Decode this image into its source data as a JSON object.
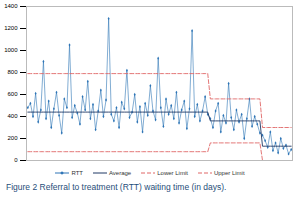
{
  "chart_data": {
    "type": "line",
    "title": "Figure 2 Referral to treatment (RTT) waiting time (in days).",
    "categories": [
      null,
      null,
      null,
      null,
      null,
      null,
      null,
      null,
      null,
      null,
      null,
      null,
      null,
      null,
      null,
      null,
      null,
      null,
      null,
      null,
      null,
      null,
      null,
      null,
      null,
      null,
      null,
      null,
      null,
      null,
      null,
      null,
      null,
      null,
      null,
      null,
      null,
      null,
      null,
      null,
      null,
      null,
      null,
      null,
      null,
      null,
      null,
      null,
      null,
      null,
      null,
      null,
      null,
      null,
      null,
      null,
      null,
      null,
      null,
      null,
      null,
      null,
      null,
      null,
      null,
      null,
      null,
      null,
      null,
      null,
      null,
      null,
      null,
      null,
      null,
      null,
      null,
      null,
      null,
      null,
      null,
      null,
      null,
      null,
      null,
      null,
      null,
      null,
      null,
      null,
      null,
      null,
      null,
      null,
      null,
      null,
      null,
      null,
      null,
      null,
      null,
      null
    ],
    "series": [
      {
        "name": "RTT",
        "color": "#2e75b6",
        "marker": "diamond",
        "line_style": "solid",
        "values": [
          480,
          520,
          400,
          610,
          350,
          460,
          900,
          380,
          540,
          300,
          470,
          620,
          410,
          250,
          560,
          480,
          1050,
          390,
          500,
          430,
          330,
          580,
          460,
          720,
          380,
          510,
          280,
          450,
          640,
          400,
          550,
          1290,
          420,
          360,
          480,
          300,
          530,
          470,
          820,
          390,
          440,
          600,
          350,
          490,
          260,
          520,
          410,
          680,
          450,
          370,
          930,
          480,
          310,
          560,
          420,
          500,
          380,
          620,
          340,
          460,
          540,
          290,
          470,
          1180,
          400,
          510,
          360,
          450,
          580,
          420,
          380,
          300,
          450,
          520,
          260,
          410,
          340,
          700,
          390,
          280,
          460,
          350,
          420,
          200,
          380,
          560,
          310,
          400,
          330,
          250,
          230,
          180,
          120,
          260,
          90,
          160,
          70,
          200,
          110,
          140,
          60,
          100
        ]
      },
      {
        "name": "Average",
        "color": "#1f3864",
        "line_style": "solid",
        "values": [
          440,
          440,
          440,
          440,
          440,
          440,
          440,
          440,
          440,
          440,
          440,
          440,
          440,
          440,
          440,
          440,
          440,
          440,
          440,
          440,
          440,
          440,
          440,
          440,
          440,
          440,
          440,
          440,
          440,
          440,
          440,
          440,
          440,
          440,
          440,
          440,
          440,
          440,
          440,
          440,
          440,
          440,
          440,
          440,
          440,
          440,
          440,
          440,
          440,
          440,
          440,
          440,
          440,
          440,
          440,
          440,
          440,
          440,
          440,
          440,
          440,
          440,
          440,
          440,
          440,
          440,
          440,
          440,
          440,
          440,
          360,
          360,
          360,
          360,
          360,
          360,
          360,
          360,
          360,
          360,
          360,
          360,
          360,
          360,
          360,
          360,
          360,
          360,
          360,
          360,
          130,
          130,
          130,
          130,
          130,
          130,
          130,
          130,
          130,
          130,
          130,
          130
        ]
      },
      {
        "name": "Lower Limit",
        "color": "#e06666",
        "line_style": "dashed",
        "values": [
          80,
          80,
          80,
          80,
          80,
          80,
          80,
          80,
          80,
          80,
          80,
          80,
          80,
          80,
          80,
          80,
          80,
          80,
          80,
          80,
          80,
          80,
          80,
          80,
          80,
          80,
          80,
          80,
          80,
          80,
          80,
          80,
          80,
          80,
          80,
          80,
          80,
          80,
          80,
          80,
          80,
          80,
          80,
          80,
          80,
          80,
          80,
          80,
          80,
          80,
          80,
          80,
          80,
          80,
          80,
          80,
          80,
          80,
          80,
          80,
          80,
          80,
          80,
          80,
          80,
          80,
          80,
          80,
          80,
          80,
          160,
          160,
          160,
          160,
          160,
          160,
          160,
          160,
          160,
          160,
          160,
          160,
          160,
          160,
          160,
          160,
          160,
          160,
          160,
          160,
          0,
          0,
          0,
          0,
          0,
          0,
          0,
          0,
          0,
          0,
          0,
          0
        ]
      },
      {
        "name": "Upper Limit",
        "color": "#e06666",
        "line_style": "dashed",
        "values": [
          790,
          790,
          790,
          790,
          790,
          790,
          790,
          790,
          790,
          790,
          790,
          790,
          790,
          790,
          790,
          790,
          790,
          790,
          790,
          790,
          790,
          790,
          790,
          790,
          790,
          790,
          790,
          790,
          790,
          790,
          790,
          790,
          790,
          790,
          790,
          790,
          790,
          790,
          790,
          790,
          790,
          790,
          790,
          790,
          790,
          790,
          790,
          790,
          790,
          790,
          790,
          790,
          790,
          790,
          790,
          790,
          790,
          790,
          790,
          790,
          790,
          790,
          790,
          790,
          790,
          790,
          790,
          790,
          790,
          790,
          560,
          560,
          560,
          560,
          560,
          560,
          560,
          560,
          560,
          560,
          560,
          560,
          560,
          560,
          560,
          560,
          560,
          560,
          560,
          560,
          300,
          300,
          300,
          300,
          300,
          300,
          300,
          300,
          300,
          300,
          300,
          300
        ]
      }
    ],
    "ylim": [
      0,
      1400
    ],
    "yticks": [
      0,
      200,
      400,
      600,
      800,
      1000,
      1200,
      1400
    ],
    "grid": false,
    "legend": "bottom",
    "tick_labels": "y"
  }
}
